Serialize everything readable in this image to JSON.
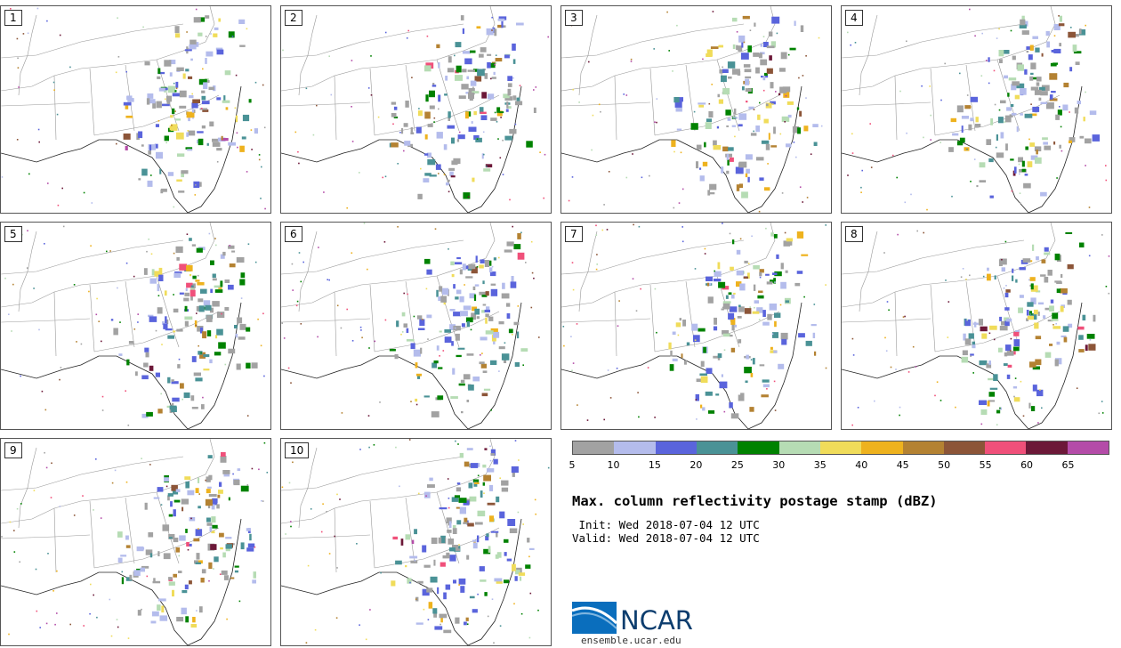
{
  "title": "Max. column reflectivity postage stamp (dBZ)",
  "init_text": " Init: Wed 2018-07-04 12 UTC",
  "valid_text": "Valid: Wed 2018-07-04 12 UTC",
  "members": [
    {
      "label": "1"
    },
    {
      "label": "2"
    },
    {
      "label": "3"
    },
    {
      "label": "4"
    },
    {
      "label": "5"
    },
    {
      "label": "6"
    },
    {
      "label": "7"
    },
    {
      "label": "8"
    },
    {
      "label": "9"
    },
    {
      "label": "10"
    }
  ],
  "colorbar": {
    "ticks": [
      "5",
      "10",
      "15",
      "20",
      "25",
      "30",
      "35",
      "40",
      "45",
      "50",
      "55",
      "60",
      "65"
    ],
    "colors": [
      "#a2a2a2",
      "#b4bcec",
      "#5a64dc",
      "#4a9296",
      "#008200",
      "#b6dcb4",
      "#f0dc5a",
      "#eeb21e",
      "#b48232",
      "#8c5538",
      "#f0507a",
      "#6c1838",
      "#b44ca8"
    ]
  },
  "logo": {
    "name": "NCAR",
    "url": "ensemble.ucar.edu"
  }
}
